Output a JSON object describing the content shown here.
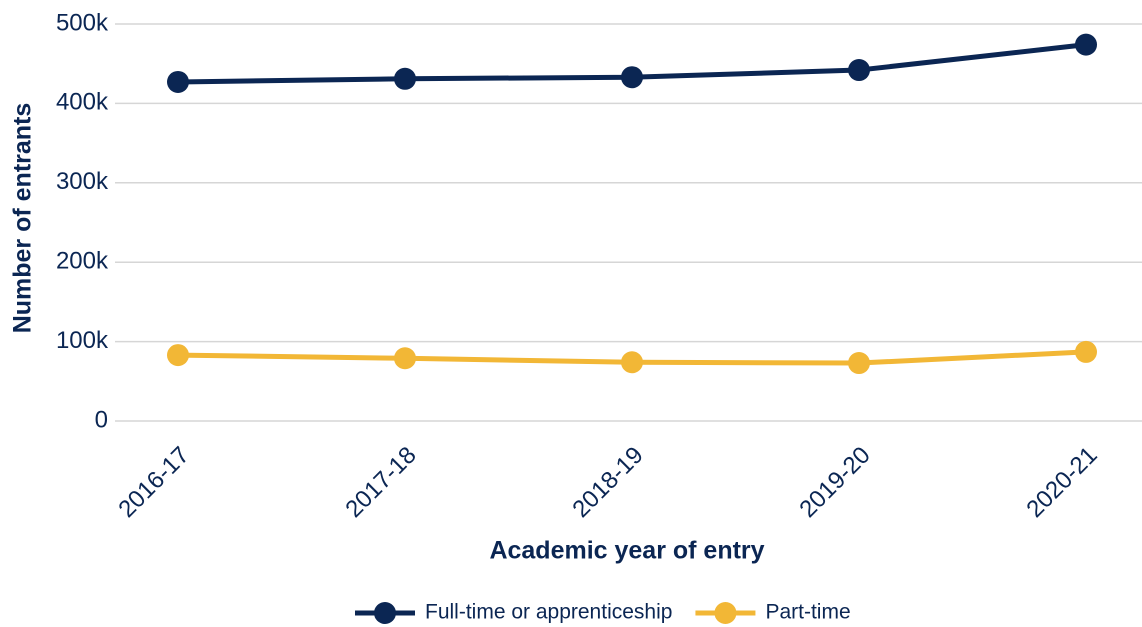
{
  "chart_data": {
    "type": "line",
    "xlabel": "Academic year of entry",
    "ylabel": "Number of entrants",
    "categories": [
      "2016-17",
      "2017-18",
      "2018-19",
      "2019-20",
      "2020-21"
    ],
    "series": [
      {
        "name": "Full-time or apprenticeship",
        "color": "#0b2653",
        "values": [
          427000,
          431000,
          433000,
          442000,
          474000
        ]
      },
      {
        "name": "Part-time",
        "color": "#f2b736",
        "values": [
          83000,
          79000,
          74000,
          73000,
          87000
        ]
      }
    ],
    "ylim": [
      0,
      500000
    ],
    "yticks": [
      0,
      {
        "value": 100000,
        "label": "100k"
      },
      {
        "value": 200000,
        "label": "200k"
      },
      {
        "value": 300000,
        "label": "300k"
      },
      {
        "value": 400000,
        "label": "400k"
      },
      {
        "value": 500000,
        "label": "500k"
      }
    ],
    "grid": true,
    "legend": "bottom"
  }
}
